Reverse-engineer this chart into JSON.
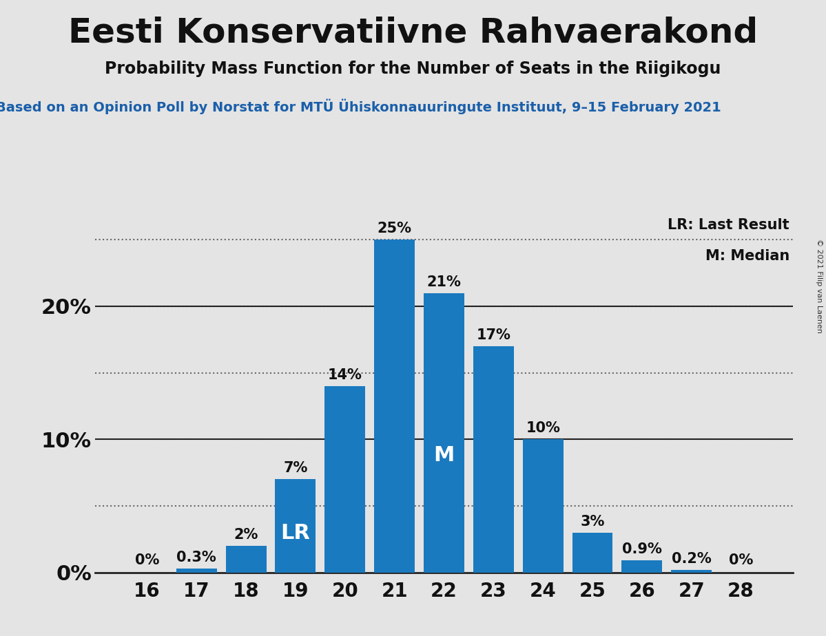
{
  "title": "Eesti Konservatiivne Rahvaerakond",
  "subtitle": "Probability Mass Function for the Number of Seats in the Riigikogu",
  "source_line": "Based on an Opinion Poll by Norstat for MTÜ Ühiskonnauuringute Instituut, 9–15 February 2021",
  "copyright": "© 2021 Filip van Laenen",
  "seats": [
    16,
    17,
    18,
    19,
    20,
    21,
    22,
    23,
    24,
    25,
    26,
    27,
    28
  ],
  "probabilities": [
    0.0,
    0.3,
    2.0,
    7.0,
    14.0,
    25.0,
    21.0,
    17.0,
    10.0,
    3.0,
    0.9,
    0.2,
    0.0
  ],
  "bar_color_main": "#1a7abf",
  "background_color": "#e4e4e4",
  "last_result_seat": 19,
  "median_seat": 22,
  "lr_label": "LR",
  "m_label": "M",
  "legend_lr": "LR: Last Result",
  "legend_m": "M: Median",
  "ytick_labels": [
    "0%",
    "10%",
    "20%"
  ],
  "ytick_values": [
    0,
    10,
    20
  ],
  "ylim_max": 27,
  "grid_lines": [
    5,
    10,
    15,
    20,
    25
  ],
  "bar_label_fontsize": 15,
  "title_fontsize": 36,
  "subtitle_fontsize": 17,
  "source_fontsize": 14,
  "tick_fontsize": 20,
  "ytick_fontsize": 22,
  "legend_fontsize": 15,
  "lr_m_fontsize": 22
}
